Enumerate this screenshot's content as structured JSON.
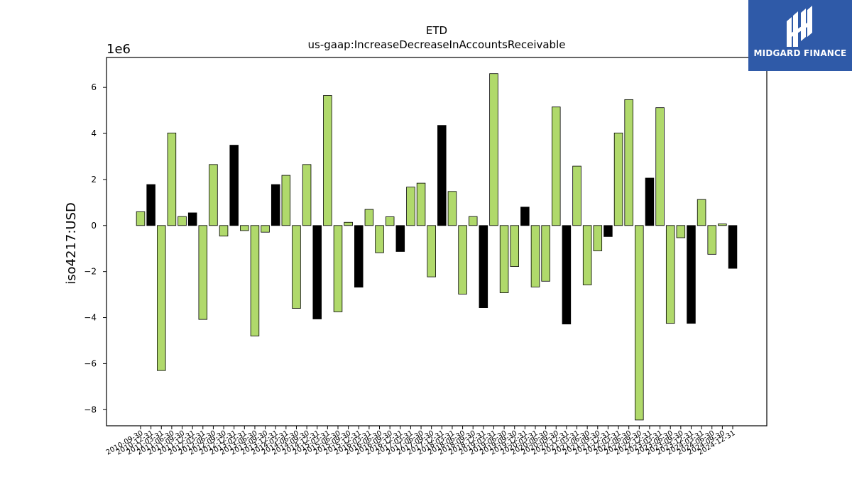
{
  "chart_data": {
    "type": "bar",
    "title": "ETD",
    "subtitle": "us-gaap:IncreaseDecreaseInAccountsReceivable",
    "ylabel": "iso4217:USD",
    "xlabel": "",
    "y_multiplier_label": "1e6",
    "ylim": [
      -8.7,
      7.3
    ],
    "yticks": [
      -8,
      -6,
      -4,
      -2,
      0,
      2,
      4,
      6
    ],
    "grid": false,
    "colors": {
      "default": "#b0d96b",
      "highlight": "#000000",
      "edge": "#000000"
    },
    "categories": [
      "2010-09-30",
      "2010-12-31",
      "2011-03-31",
      "2011-06-30",
      "2011-09-30",
      "2011-12-31",
      "2012-03-31",
      "2012-06-30",
      "2012-09-30",
      "2012-12-31",
      "2013-03-31",
      "2013-06-30",
      "2013-09-30",
      "2013-12-31",
      "2014-03-31",
      "2014-06-30",
      "2014-09-30",
      "2014-12-31",
      "2015-03-31",
      "2015-06-30",
      "2015-09-30",
      "2015-12-31",
      "2016-03-31",
      "2016-06-30",
      "2016-09-30",
      "2016-12-31",
      "2017-03-31",
      "2017-06-30",
      "2017-09-30",
      "2017-12-31",
      "2018-03-31",
      "2018-06-30",
      "2018-09-30",
      "2018-12-31",
      "2019-03-31",
      "2019-06-30",
      "2019-09-30",
      "2019-12-31",
      "2020-03-31",
      "2020-06-30",
      "2020-09-30",
      "2020-12-31",
      "2021-03-31",
      "2021-06-30",
      "2021-09-30",
      "2021-12-31",
      "2022-03-31",
      "2022-06-30",
      "2022-09-30",
      "2022-12-31",
      "2023-03-31",
      "2023-06-30",
      "2023-09-30",
      "2023-12-31",
      "2024-03-31",
      "2024-06-30",
      "2024-09-30",
      "2024-12-31"
    ],
    "values": [
      0.6,
      1.78,
      -6.3,
      4.02,
      0.39,
      0.55,
      -4.08,
      2.65,
      -0.46,
      3.49,
      -0.22,
      -4.8,
      -0.29,
      1.78,
      2.18,
      -3.6,
      2.65,
      -4.06,
      5.65,
      -3.75,
      0.14,
      -2.68,
      0.7,
      -1.18,
      0.38,
      -1.13,
      1.67,
      1.84,
      -2.23,
      4.35,
      1.48,
      -2.98,
      0.39,
      -3.57,
      6.6,
      -2.92,
      -1.78,
      0.8,
      -2.67,
      -2.42,
      5.15,
      -4.28,
      2.58,
      -2.58,
      -1.1,
      -0.48,
      4.02,
      5.47,
      -8.45,
      2.06,
      5.12,
      -4.25,
      -0.53,
      -4.25,
      1.13,
      -1.25,
      0.07,
      -1.86
    ],
    "highlight": [
      false,
      true,
      false,
      false,
      false,
      true,
      false,
      false,
      false,
      true,
      false,
      false,
      false,
      true,
      false,
      false,
      false,
      true,
      false,
      false,
      false,
      true,
      false,
      false,
      false,
      true,
      false,
      false,
      false,
      true,
      false,
      false,
      false,
      true,
      false,
      false,
      false,
      true,
      false,
      false,
      false,
      true,
      false,
      false,
      false,
      true,
      false,
      false,
      false,
      true,
      false,
      false,
      false,
      true,
      false,
      false,
      false,
      true
    ]
  },
  "brand": {
    "name": "MIDGARD FINANCE",
    "color": "#2f5aa8"
  }
}
